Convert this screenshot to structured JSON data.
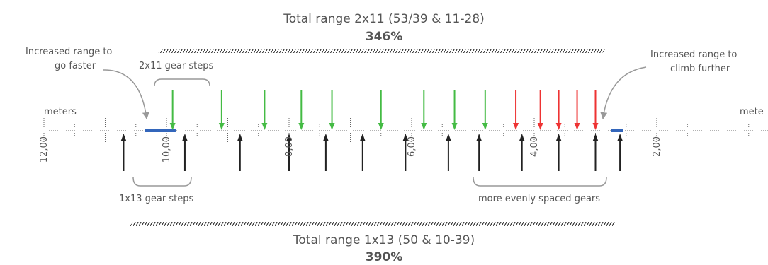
{
  "top": {
    "title": "Total range 2x11 (53/39 & 11-28)",
    "percent": "346%"
  },
  "bottom": {
    "title": "Total range 1x13 (50 & 10-39)",
    "percent": "390%"
  },
  "annotations": {
    "faster": [
      "Increased range to",
      "go faster"
    ],
    "climb": [
      "Increased range to",
      "climb further"
    ],
    "steps_2x11": "2x11 gear steps",
    "steps_1x13": "1x13 gear steps",
    "evenly": "more evenly spaced gears"
  },
  "axis": {
    "unit_left": "meters",
    "unit_right": "mete",
    "ticks": [
      {
        "value": "12,00",
        "meters": 12.0
      },
      {
        "value": "10,00",
        "meters": 10.0
      },
      {
        "value": "8,00",
        "meters": 8.0
      },
      {
        "value": "6,00",
        "meters": 6.0
      },
      {
        "value": "4,00",
        "meters": 4.0
      },
      {
        "value": "2,00",
        "meters": 2.0
      }
    ]
  },
  "chart_data": {
    "type": "diagram",
    "x_unit": "meters of development per crank revolution",
    "x_reversed": true,
    "gears_2x11": {
      "colors": [
        "#44bb44",
        "#ee3333"
      ],
      "green_meters": [
        9.9,
        9.1,
        8.4,
        7.8,
        7.3,
        6.5,
        5.8,
        5.3,
        4.8
      ],
      "red_meters": [
        4.3,
        3.9,
        3.6,
        3.3,
        3.0
      ]
    },
    "gears_1x13": {
      "color": "#222222",
      "meters": [
        10.7,
        9.7,
        8.8,
        8.0,
        7.4,
        6.8,
        6.1,
        5.4,
        4.9,
        4.2,
        3.6,
        3.0,
        2.6
      ]
    },
    "increased_range": {
      "color": "#3366bb",
      "faster": [
        10.35,
        9.85
      ],
      "climb": [
        2.75,
        2.55
      ]
    }
  }
}
